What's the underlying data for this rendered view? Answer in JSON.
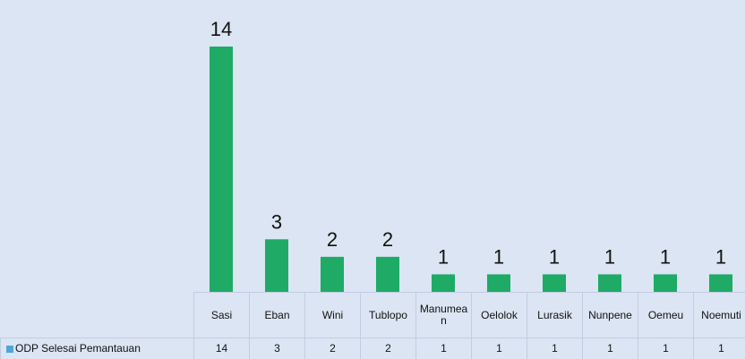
{
  "chart_data": {
    "type": "bar",
    "categories": [
      "Sasi",
      "Eban",
      "Wini",
      "Tublopo",
      "Manumean",
      "Oelolok",
      "Lurasik",
      "Nunpene",
      "Oemeu",
      "Noemuti"
    ],
    "series": [
      {
        "name": "ODP Selesai Pemantauan",
        "color": "#1faa66",
        "legend_color": "#4ea6d6",
        "values": [
          14,
          3,
          2,
          2,
          1,
          1,
          1,
          1,
          1,
          1
        ]
      }
    ],
    "ylim": [
      0,
      14
    ]
  }
}
